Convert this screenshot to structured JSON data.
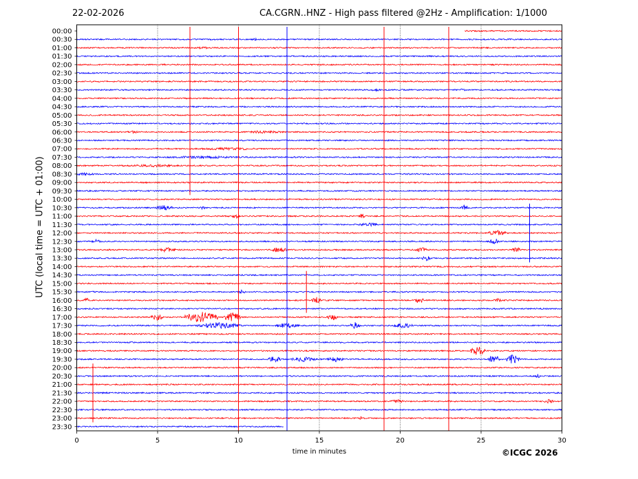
{
  "header": {
    "date": "22-02-2026",
    "title": "CA.CGRN..HNZ - High pass filtered @2Hz - Amplification: 1/1000"
  },
  "footer": {
    "copyright": "©ICGC 2026"
  },
  "chart_data": {
    "type": "line",
    "title": "CA.CGRN..HNZ - High pass filtered @2Hz - Amplification: 1/1000",
    "xlabel": "time in minutes",
    "ylabel": "UTC (local time = UTC + 01:00)",
    "xlim": [
      0,
      30
    ],
    "x_ticks": [
      "0",
      "5",
      "10",
      "15",
      "20",
      "25",
      "30"
    ],
    "x_tick_values": [
      0,
      5,
      10,
      15,
      20,
      25,
      30
    ],
    "grid_x": true,
    "series_colors": [
      "#ff0000",
      "#0000ff"
    ],
    "rows": [
      "00:00",
      "00:30",
      "01:00",
      "01:30",
      "02:00",
      "02:30",
      "03:00",
      "03:30",
      "04:00",
      "04:30",
      "05:00",
      "05:30",
      "06:00",
      "06:30",
      "07:00",
      "07:30",
      "08:00",
      "08:30",
      "09:00",
      "09:30",
      "10:00",
      "10:30",
      "11:00",
      "11:30",
      "12:00",
      "12:30",
      "13:00",
      "13:30",
      "14:00",
      "14:30",
      "15:00",
      "15:30",
      "16:00",
      "16:30",
      "17:00",
      "17:30",
      "18:00",
      "18:30",
      "19:00",
      "19:30",
      "20:00",
      "20:30",
      "21:00",
      "21:30",
      "22:00",
      "22:30",
      "23:00",
      "23:30"
    ],
    "row_extent": [
      [
        24,
        30
      ],
      [
        0,
        30
      ],
      [
        0,
        30
      ],
      [
        0,
        30
      ],
      [
        0,
        30
      ],
      [
        0,
        30
      ],
      [
        0,
        30
      ],
      [
        0,
        30
      ],
      [
        0,
        30
      ],
      [
        0,
        30
      ],
      [
        0,
        30
      ],
      [
        0,
        30
      ],
      [
        0,
        30
      ],
      [
        0,
        30
      ],
      [
        0,
        30
      ],
      [
        0,
        30
      ],
      [
        0,
        30
      ],
      [
        0,
        30
      ],
      [
        0,
        30
      ],
      [
        0,
        30
      ],
      [
        0,
        30
      ],
      [
        0,
        30
      ],
      [
        0,
        30
      ],
      [
        0,
        30
      ],
      [
        0,
        30
      ],
      [
        0,
        30
      ],
      [
        0,
        30
      ],
      [
        0,
        30
      ],
      [
        0,
        30
      ],
      [
        0,
        30
      ],
      [
        0,
        30
      ],
      [
        0,
        30
      ],
      [
        0,
        30
      ],
      [
        0,
        30
      ],
      [
        0,
        30
      ],
      [
        0,
        30
      ],
      [
        0,
        30
      ],
      [
        0,
        30
      ],
      [
        0,
        30
      ],
      [
        0,
        30
      ],
      [
        0,
        30
      ],
      [
        0,
        30
      ],
      [
        0,
        30
      ],
      [
        0,
        30
      ],
      [
        0,
        30
      ],
      [
        0,
        30
      ],
      [
        0,
        30
      ],
      [
        0,
        12.8
      ]
    ],
    "vertical_spikes": [
      {
        "x": 7.0,
        "rows": [
          0,
          19
        ],
        "color": "#ff0000"
      },
      {
        "x": 10.0,
        "rows": [
          0,
          47
        ],
        "color": "#ff0000"
      },
      {
        "x": 13.0,
        "rows": [
          0,
          47
        ],
        "color": "#0000ff"
      },
      {
        "x": 19.0,
        "rows": [
          0,
          47
        ],
        "color": "#ff0000"
      },
      {
        "x": 23.0,
        "rows": [
          0,
          47
        ],
        "color": "#ff0000"
      },
      {
        "x": 30.0,
        "rows": [
          0,
          47
        ],
        "color": "#ff0000"
      },
      {
        "x": 1.0,
        "rows": [
          40,
          46
        ],
        "color": "#ff0000"
      },
      {
        "x": 14.2,
        "rows": [
          29,
          33
        ],
        "color": "#ff0000"
      },
      {
        "x": 28.0,
        "rows": [
          21,
          27
        ],
        "color": "#0000ff"
      }
    ],
    "events": [
      {
        "row": 1,
        "x": 11.0,
        "width": 0.5,
        "amp": 2
      },
      {
        "row": 2,
        "x": 7.8,
        "width": 0.8,
        "amp": 2
      },
      {
        "row": 7,
        "x": 18.5,
        "width": 0.8,
        "amp": 2
      },
      {
        "row": 7,
        "x": 23.8,
        "width": 0.6,
        "amp": 2
      },
      {
        "row": 9,
        "x": 11.0,
        "width": 0.4,
        "amp": 2
      },
      {
        "row": 12,
        "x": 3.5,
        "width": 1.0,
        "amp": 2
      },
      {
        "row": 12,
        "x": 11.5,
        "width": 3.0,
        "amp": 2
      },
      {
        "row": 14,
        "x": 9.5,
        "width": 4.5,
        "amp": 2
      },
      {
        "row": 15,
        "x": 8.0,
        "width": 6.0,
        "amp": 2
      },
      {
        "row": 16,
        "x": 5.0,
        "width": 5.0,
        "amp": 2
      },
      {
        "row": 17,
        "x": 0.5,
        "width": 1.5,
        "amp": 2
      },
      {
        "row": 21,
        "x": 5.4,
        "width": 1.0,
        "amp": 4
      },
      {
        "row": 21,
        "x": 7.8,
        "width": 0.3,
        "amp": 3
      },
      {
        "row": 21,
        "x": 24.0,
        "width": 0.4,
        "amp": 5
      },
      {
        "row": 22,
        "x": 17.6,
        "width": 0.4,
        "amp": 4
      },
      {
        "row": 22,
        "x": 9.8,
        "width": 0.5,
        "amp": 4
      },
      {
        "row": 23,
        "x": 18.0,
        "width": 1.2,
        "amp": 3
      },
      {
        "row": 24,
        "x": 26.0,
        "width": 1.2,
        "amp": 4
      },
      {
        "row": 25,
        "x": 1.2,
        "width": 0.6,
        "amp": 3
      },
      {
        "row": 25,
        "x": 25.8,
        "width": 0.5,
        "amp": 5
      },
      {
        "row": 26,
        "x": 5.6,
        "width": 1.0,
        "amp": 4
      },
      {
        "row": 26,
        "x": 12.5,
        "width": 1.0,
        "amp": 4
      },
      {
        "row": 26,
        "x": 21.3,
        "width": 0.8,
        "amp": 4
      },
      {
        "row": 26,
        "x": 27.2,
        "width": 0.6,
        "amp": 4
      },
      {
        "row": 27,
        "x": 21.6,
        "width": 0.5,
        "amp": 4
      },
      {
        "row": 31,
        "x": 10.2,
        "width": 0.6,
        "amp": 3
      },
      {
        "row": 32,
        "x": 14.8,
        "width": 0.6,
        "amp": 5
      },
      {
        "row": 32,
        "x": 21.2,
        "width": 0.6,
        "amp": 5
      },
      {
        "row": 32,
        "x": 0.6,
        "width": 0.3,
        "amp": 4
      },
      {
        "row": 32,
        "x": 26.0,
        "width": 0.5,
        "amp": 3
      },
      {
        "row": 34,
        "x": 5.0,
        "width": 0.8,
        "amp": 5
      },
      {
        "row": 34,
        "x": 7.7,
        "width": 2.0,
        "amp": 8
      },
      {
        "row": 34,
        "x": 9.6,
        "width": 1.0,
        "amp": 7
      },
      {
        "row": 34,
        "x": 15.8,
        "width": 0.6,
        "amp": 5
      },
      {
        "row": 35,
        "x": 8.8,
        "width": 2.8,
        "amp": 5
      },
      {
        "row": 35,
        "x": 13.0,
        "width": 1.5,
        "amp": 4
      },
      {
        "row": 35,
        "x": 17.2,
        "width": 0.6,
        "amp": 5
      },
      {
        "row": 35,
        "x": 20.2,
        "width": 1.2,
        "amp": 4
      },
      {
        "row": 38,
        "x": 24.8,
        "width": 0.9,
        "amp": 7
      },
      {
        "row": 39,
        "x": 12.2,
        "width": 0.8,
        "amp": 5
      },
      {
        "row": 39,
        "x": 14.0,
        "width": 1.5,
        "amp": 4
      },
      {
        "row": 39,
        "x": 16.0,
        "width": 1.2,
        "amp": 4
      },
      {
        "row": 39,
        "x": 25.8,
        "width": 0.8,
        "amp": 6
      },
      {
        "row": 39,
        "x": 27.0,
        "width": 0.8,
        "amp": 8
      },
      {
        "row": 41,
        "x": 28.5,
        "width": 0.4,
        "amp": 3
      },
      {
        "row": 44,
        "x": 19.8,
        "width": 0.8,
        "amp": 3
      },
      {
        "row": 44,
        "x": 29.2,
        "width": 0.6,
        "amp": 3
      },
      {
        "row": 46,
        "x": 17.6,
        "width": 0.4,
        "amp": 3
      }
    ]
  }
}
